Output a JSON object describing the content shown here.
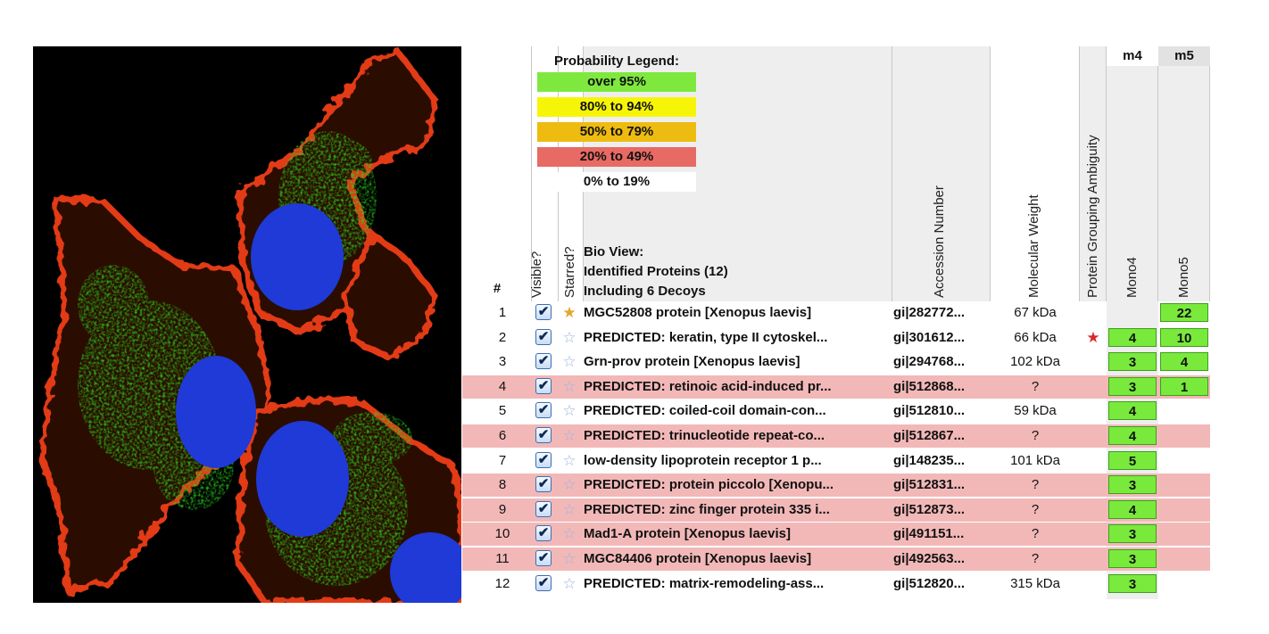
{
  "legend": {
    "title": "Probability Legend:",
    "items": [
      {
        "label": "over 95%",
        "color": "#7fe83e"
      },
      {
        "label": "80% to 94%",
        "color": "#f7f507"
      },
      {
        "label": "50% to 79%",
        "color": "#eebb10"
      },
      {
        "label": "20% to  49%",
        "color": "#e86a64"
      },
      {
        "label": "0% to 19%",
        "color": "#ffffff"
      }
    ]
  },
  "bio_view": {
    "line1": "Bio View:",
    "line2": "Identified Proteins (12)",
    "line3": "Including 6 Decoys"
  },
  "columns": {
    "num": "#",
    "visible": "Visible?",
    "starred": "Starred?",
    "accession": "Accession Number",
    "mol_weight": "Molecular Weight",
    "ambiguity": "Protein Grouping Ambiguity",
    "m4_top": "m4",
    "m5_top": "m5",
    "m4": "Mono4",
    "m5": "Mono5"
  },
  "rows": [
    {
      "n": "1",
      "name": "MGC52808 protein [Xenopus laevis]",
      "acc": "gi|282772...",
      "mw": "67 kDa",
      "amb": "",
      "m4": "",
      "m5": "22",
      "decoy": false,
      "starred": true
    },
    {
      "n": "2",
      "name": "PREDICTED: keratin, type II cytoskel...",
      "acc": "gi|301612...",
      "mw": "66 kDa",
      "amb": "★",
      "m4": "4",
      "m5": "10",
      "decoy": false,
      "starred": false
    },
    {
      "n": "3",
      "name": "Grn-prov protein [Xenopus laevis]",
      "acc": "gi|294768...",
      "mw": "102 kDa",
      "amb": "",
      "m4": "3",
      "m5": "4",
      "decoy": false,
      "starred": false
    },
    {
      "n": "4",
      "name": "PREDICTED: retinoic acid-induced pr...",
      "acc": "gi|512868...",
      "mw": "?",
      "amb": "",
      "m4": "3",
      "m5": "1",
      "decoy": true,
      "starred": false
    },
    {
      "n": "5",
      "name": "PREDICTED: coiled-coil domain-con...",
      "acc": "gi|512810...",
      "mw": "59 kDa",
      "amb": "",
      "m4": "4",
      "m5": "",
      "decoy": false,
      "starred": false
    },
    {
      "n": "6",
      "name": "PREDICTED: trinucleotide repeat-co...",
      "acc": "gi|512867...",
      "mw": "?",
      "amb": "",
      "m4": "4",
      "m5": "",
      "decoy": true,
      "starred": false
    },
    {
      "n": "7",
      "name": "low-density lipoprotein receptor 1 p...",
      "acc": "gi|148235...",
      "mw": "101 kDa",
      "amb": "",
      "m4": "5",
      "m5": "",
      "decoy": false,
      "starred": false
    },
    {
      "n": "8",
      "name": "PREDICTED: protein piccolo [Xenopu...",
      "acc": "gi|512831...",
      "mw": "?",
      "amb": "",
      "m4": "3",
      "m5": "",
      "decoy": true,
      "starred": false
    },
    {
      "n": "9",
      "name": "PREDICTED: zinc finger protein 335 i...",
      "acc": "gi|512873...",
      "mw": "?",
      "amb": "",
      "m4": "4",
      "m5": "",
      "decoy": true,
      "starred": false
    },
    {
      "n": "10",
      "name": "Mad1-A protein [Xenopus laevis]",
      "acc": "gi|491151...",
      "mw": "?",
      "amb": "",
      "m4": "3",
      "m5": "",
      "decoy": true,
      "starred": false
    },
    {
      "n": "11",
      "name": "MGC84406 protein [Xenopus laevis]",
      "acc": "gi|492563...",
      "mw": "?",
      "amb": "",
      "m4": "3",
      "m5": "",
      "decoy": true,
      "starred": false
    },
    {
      "n": "12",
      "name": "PREDICTED: matrix-remodeling-ass...",
      "acc": "gi|512820...",
      "mw": "315 kDa",
      "amb": "",
      "m4": "3",
      "m5": "",
      "decoy": false,
      "starred": false
    }
  ],
  "icons": {
    "checkbox": "checkbox-checked-icon",
    "star_empty": "star-outline-icon",
    "star_filled": "star-filled-icon"
  }
}
